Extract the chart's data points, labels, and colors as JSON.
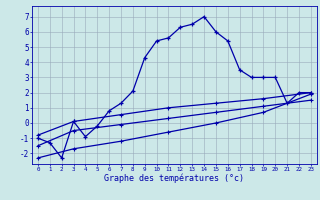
{
  "background_color": "#cce8e8",
  "grid_color": "#99aabb",
  "line_color": "#0000aa",
  "xlabel": "Graphe des températures (°c)",
  "xlim": [
    -0.5,
    23.5
  ],
  "ylim": [
    -2.7,
    7.7
  ],
  "yticks": [
    -2,
    -1,
    0,
    1,
    2,
    3,
    4,
    5,
    6,
    7
  ],
  "xticks": [
    0,
    1,
    2,
    3,
    4,
    5,
    6,
    7,
    8,
    9,
    10,
    11,
    12,
    13,
    14,
    15,
    16,
    17,
    18,
    19,
    20,
    21,
    22,
    23
  ],
  "series": [
    {
      "x": [
        0,
        1,
        2,
        3,
        4,
        5,
        6,
        7,
        8,
        9,
        10,
        11,
        12,
        13,
        14,
        15,
        16,
        17,
        18,
        19,
        20,
        21,
        22,
        23
      ],
      "y": [
        -1.0,
        -1.3,
        -2.3,
        0.1,
        -0.9,
        -0.2,
        0.8,
        1.3,
        2.1,
        4.3,
        5.4,
        5.6,
        6.3,
        6.5,
        7.0,
        6.0,
        5.4,
        3.5,
        3.0,
        3.0,
        3.0,
        1.3,
        2.0,
        2.0
      ]
    },
    {
      "x": [
        0,
        3,
        23
      ],
      "y": [
        -0.8,
        0.1,
        2.0
      ]
    },
    {
      "x": [
        0,
        3,
        23
      ],
      "y": [
        -1.5,
        -0.5,
        1.5
      ]
    },
    {
      "x": [
        0,
        3,
        23
      ],
      "y": [
        -2.3,
        -1.7,
        1.9
      ]
    }
  ],
  "gentle_markers": [
    {
      "x": [
        0,
        3,
        7,
        11,
        15,
        19,
        23
      ],
      "y": [
        -0.8,
        0.1,
        0.55,
        1.0,
        1.3,
        1.6,
        2.0
      ]
    },
    {
      "x": [
        0,
        3,
        7,
        11,
        15,
        19,
        23
      ],
      "y": [
        -1.5,
        -0.5,
        -0.1,
        0.3,
        0.7,
        1.1,
        1.5
      ]
    },
    {
      "x": [
        0,
        3,
        7,
        11,
        15,
        19,
        23
      ],
      "y": [
        -2.3,
        -1.7,
        -1.2,
        -0.6,
        0.0,
        0.7,
        1.9
      ]
    }
  ]
}
